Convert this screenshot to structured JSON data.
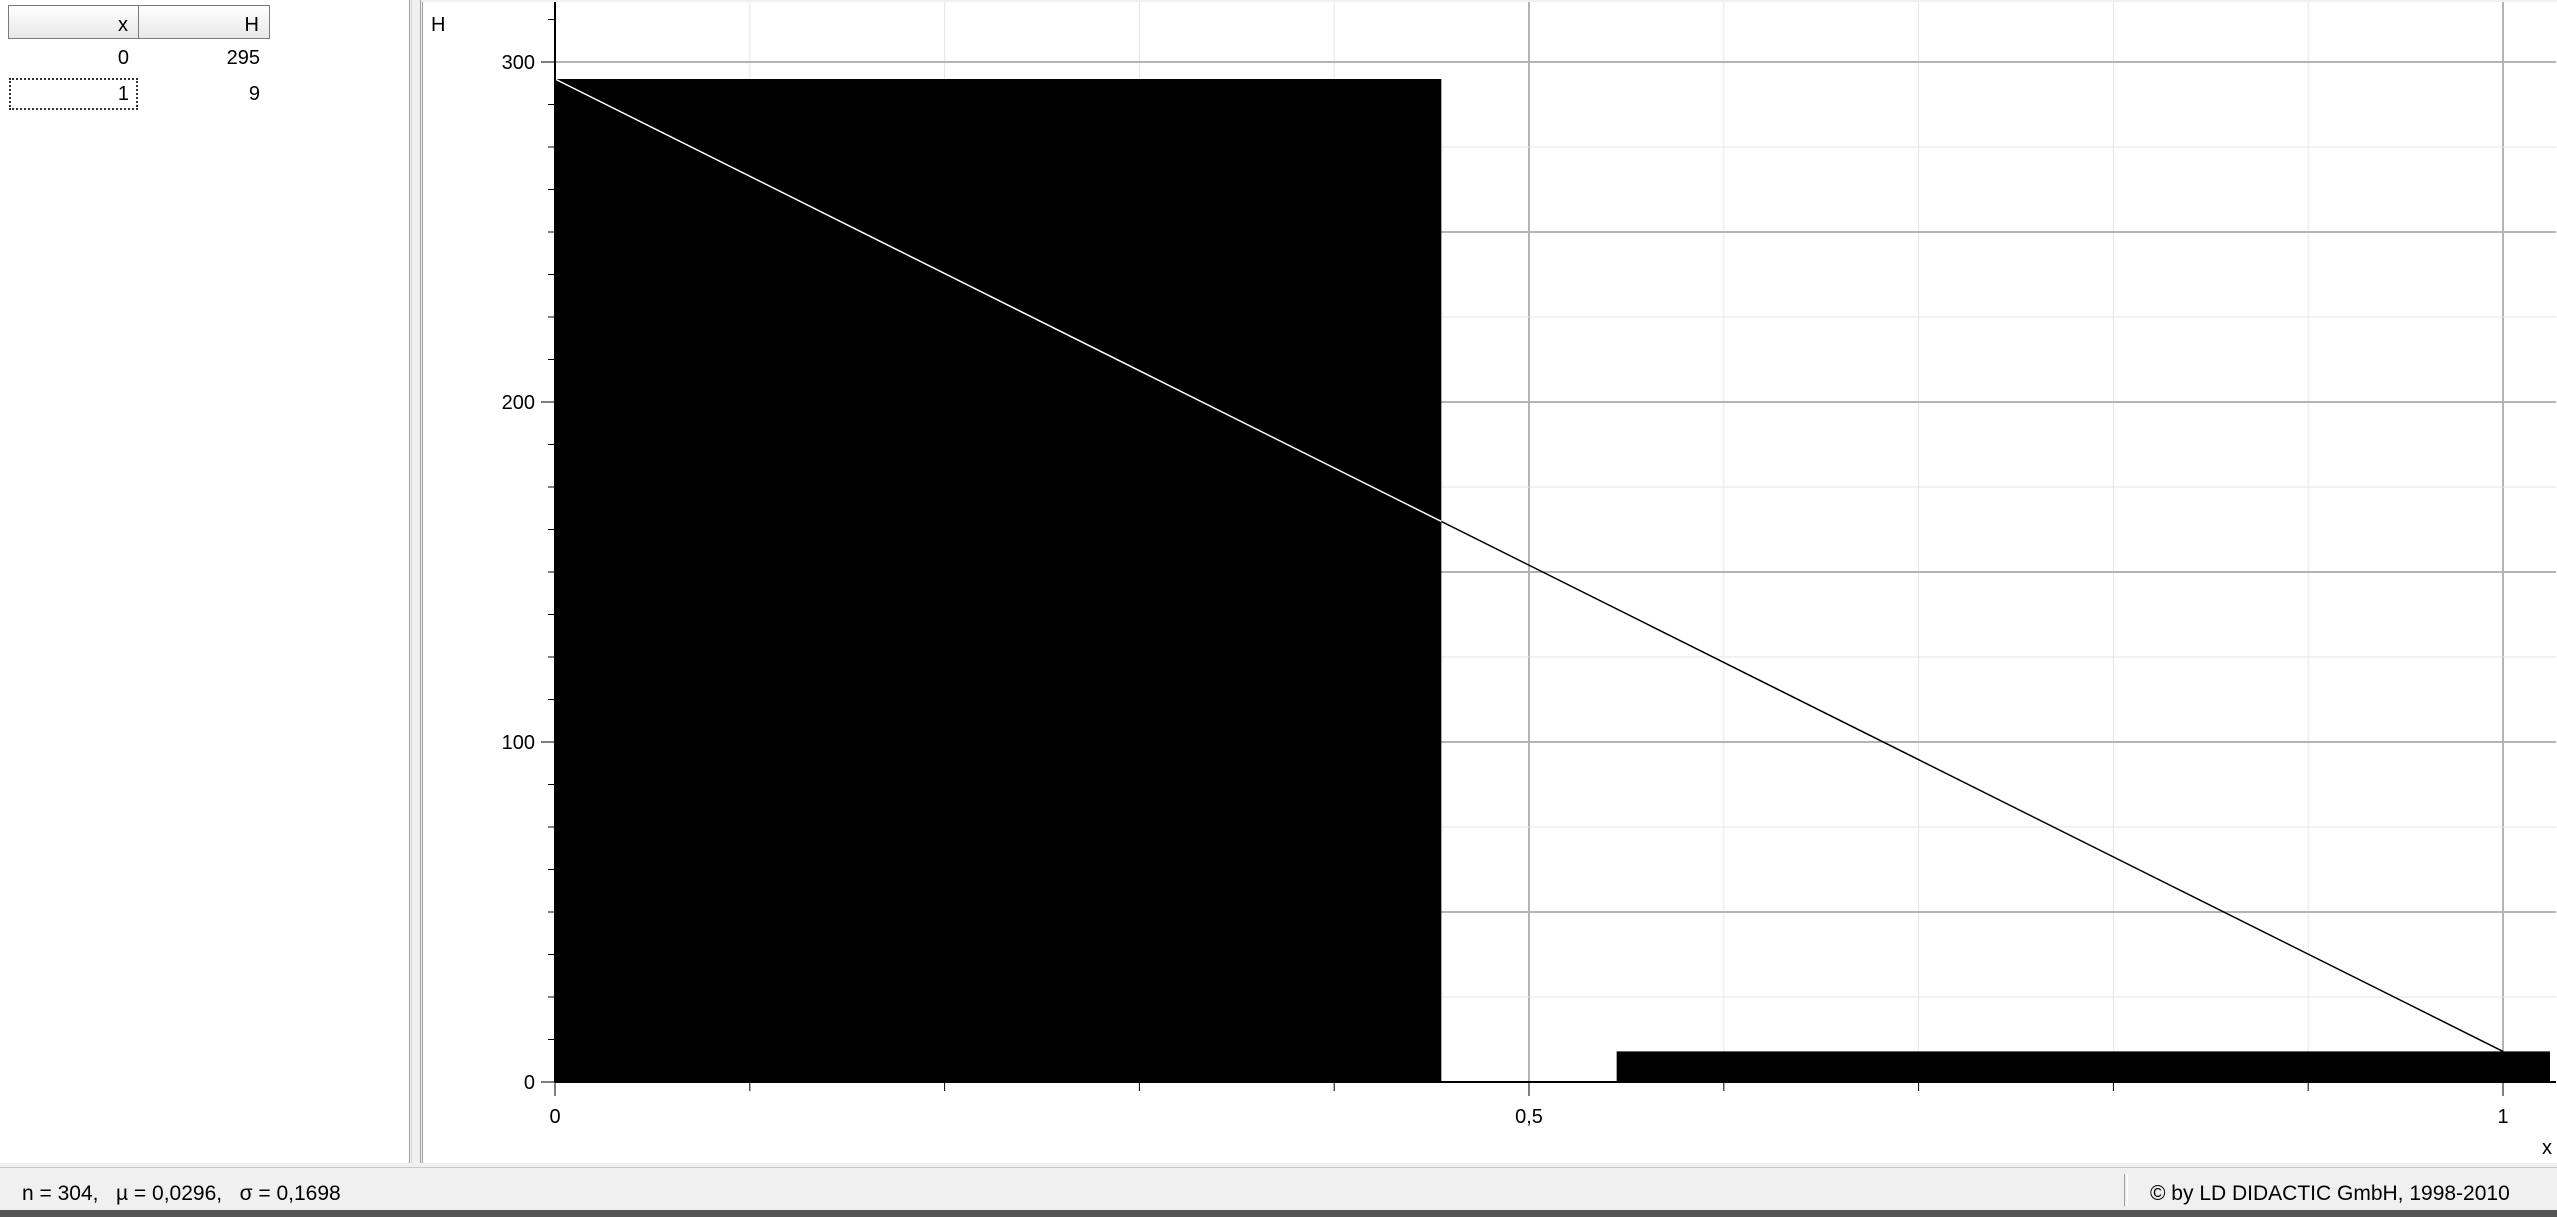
{
  "table": {
    "headers": {
      "x": "x",
      "h": "H"
    },
    "rows": [
      {
        "x": "0",
        "h": "295"
      },
      {
        "x": "1",
        "h": "9"
      }
    ]
  },
  "status": {
    "stats": "n = 304,   µ = 0,0296,   σ = 0,1698",
    "copyright": "© by LD DIDACTIC GmbH, 1998-2010"
  },
  "chart_data": {
    "type": "bar",
    "xlabel": "x",
    "ylabel": "H",
    "x_tick_labels": [
      "0",
      "0,5",
      "1"
    ],
    "y_tick_labels": [
      "0",
      "100",
      "200",
      "300"
    ],
    "xlim": [
      0,
      1.1
    ],
    "ylim": [
      0,
      315
    ],
    "grid": true,
    "bars": [
      {
        "x": 0,
        "value": 295
      },
      {
        "x": 1,
        "value": 9
      }
    ],
    "fit_line": {
      "points": [
        [
          0,
          295
        ],
        [
          1,
          9
        ]
      ]
    },
    "colors": {
      "bars": "#000000",
      "line": "#000000",
      "grid": "#c8c8c8"
    }
  }
}
